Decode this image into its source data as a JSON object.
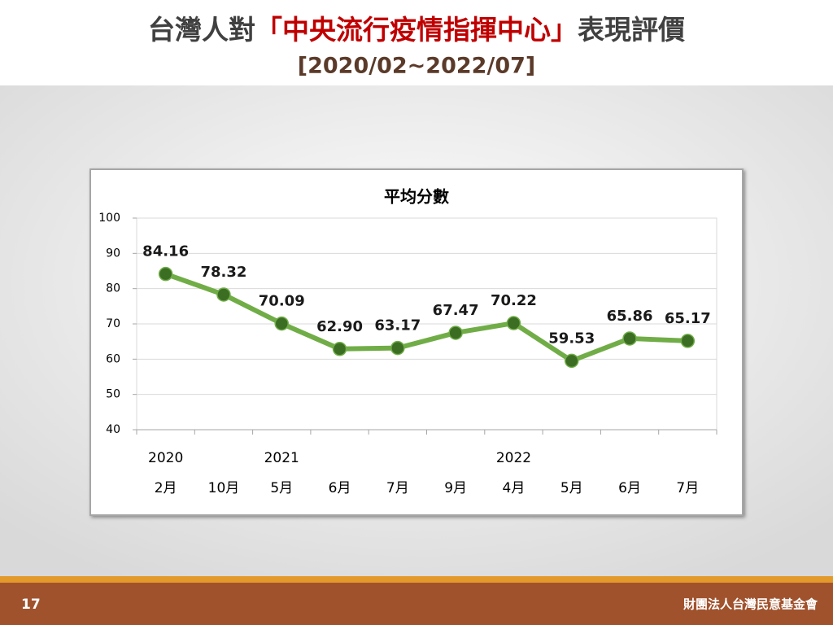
{
  "slide": {
    "title_parts": [
      "台灣人對",
      "「中央流行疫情指揮中心」",
      "表現評價"
    ],
    "subtitle": "[2020/02~2022/07]",
    "page_number": "17",
    "footer": "財團法人台灣民意基金會"
  },
  "chart_data": {
    "type": "line",
    "title": "平均分數",
    "categories": [
      "2月",
      "10月",
      "5月",
      "6月",
      "7月",
      "9月",
      "4月",
      "5月",
      "6月",
      "7月"
    ],
    "x_groups": [
      "2020",
      null,
      "2021",
      null,
      null,
      null,
      "2022",
      null,
      null,
      null
    ],
    "values": [
      84.16,
      78.32,
      70.09,
      62.9,
      63.17,
      67.47,
      70.22,
      59.53,
      65.86,
      65.17
    ],
    "value_labels": [
      "84.16",
      "78.32",
      "70.09",
      "62.90",
      "63.17",
      "67.47",
      "70.22",
      "59.53",
      "65.86",
      "65.17"
    ],
    "color": "#70ad47",
    "marker_color": "#3b6e22",
    "ylim": [
      40,
      100
    ],
    "yticks": [
      40,
      50,
      60,
      70,
      80,
      90,
      100
    ],
    "grid": true
  }
}
